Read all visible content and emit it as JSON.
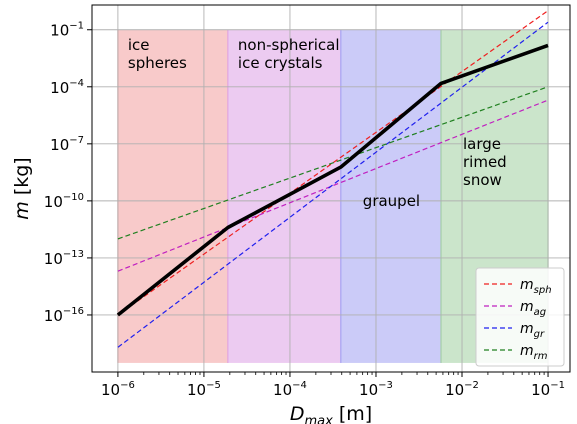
{
  "chart_data": {
    "type": "line",
    "xlabel": "D",
    "xlabel_sub": "max",
    "xlabel_unit": " [m]",
    "ylabel": "m",
    "ylabel_unit": " [kg]",
    "x_scale": "log",
    "y_scale": "log",
    "xlim": [
      5e-07,
      0.18
    ],
    "ylim": [
      1e-19,
      2.0
    ],
    "grid": true,
    "legend_position": "bottom-right",
    "x_ticks": [
      {
        "value": 1e-06,
        "base": "10",
        "exp": "−6"
      },
      {
        "value": 1e-05,
        "base": "10",
        "exp": "−5"
      },
      {
        "value": 0.0001,
        "base": "10",
        "exp": "−4"
      },
      {
        "value": 0.001,
        "base": "10",
        "exp": "−3"
      },
      {
        "value": 0.01,
        "base": "10",
        "exp": "−2"
      },
      {
        "value": 0.1,
        "base": "10",
        "exp": "−1"
      }
    ],
    "y_ticks": [
      {
        "value": 1e-16,
        "base": "10",
        "exp": "−16"
      },
      {
        "value": 1e-13,
        "base": "10",
        "exp": "−13"
      },
      {
        "value": 1e-10,
        "base": "10",
        "exp": "−10"
      },
      {
        "value": 1e-07,
        "base": "10",
        "exp": "−7"
      },
      {
        "value": 0.0001,
        "base": "10",
        "exp": "−4"
      },
      {
        "value": 0.1,
        "base": "10",
        "exp": "−1"
      }
    ],
    "regions": [
      {
        "label": [
          "ice",
          "spheres"
        ],
        "x0": 1e-06,
        "x1": 1.9e-05,
        "y0": 3e-19,
        "y1": 0.1,
        "color": "#f4a6a6"
      },
      {
        "label": [
          "non-spherical",
          "ice crystals"
        ],
        "x0": 1.9e-05,
        "x1": 0.00039,
        "y0": 3e-19,
        "y1": 0.1,
        "color": "#e0a8e8"
      },
      {
        "label": [
          "graupel"
        ],
        "x0": 0.00039,
        "x1": 0.0057,
        "y0": 3e-19,
        "y1": 0.1,
        "color": "#a9a9f4"
      },
      {
        "label": [
          "large",
          "rimed",
          "snow"
        ],
        "x0": 0.0057,
        "x1": 0.1,
        "y0": 3e-19,
        "y1": 0.1,
        "color": "#a9d3a9"
      }
    ],
    "series": [
      {
        "name": "m",
        "sub": "sph",
        "color": "#ee2020",
        "dashed": true,
        "x": [
          1e-06,
          0.1
        ],
        "y": [
          1e-16,
          1.0
        ]
      },
      {
        "name": "m",
        "sub": "ag",
        "color": "#c020c0",
        "dashed": true,
        "x": [
          1e-06,
          0.1
        ],
        "y": [
          2e-14,
          2e-05
        ]
      },
      {
        "name": "m",
        "sub": "gr",
        "color": "#2020ee",
        "dashed": true,
        "x": [
          1e-06,
          0.1
        ],
        "y": [
          2e-18,
          0.25
        ]
      },
      {
        "name": "m",
        "sub": "rm",
        "color": "#208020",
        "dashed": true,
        "x": [
          1e-06,
          0.1
        ],
        "y": [
          1e-12,
          0.0001
        ]
      },
      {
        "name": "",
        "color": "#000000",
        "dashed": false,
        "x": [
          1e-06,
          1.9e-05,
          0.00039,
          0.0057,
          0.1
        ],
        "y": [
          1e-16,
          4e-12,
          6e-09,
          0.00015,
          0.015
        ]
      }
    ]
  }
}
